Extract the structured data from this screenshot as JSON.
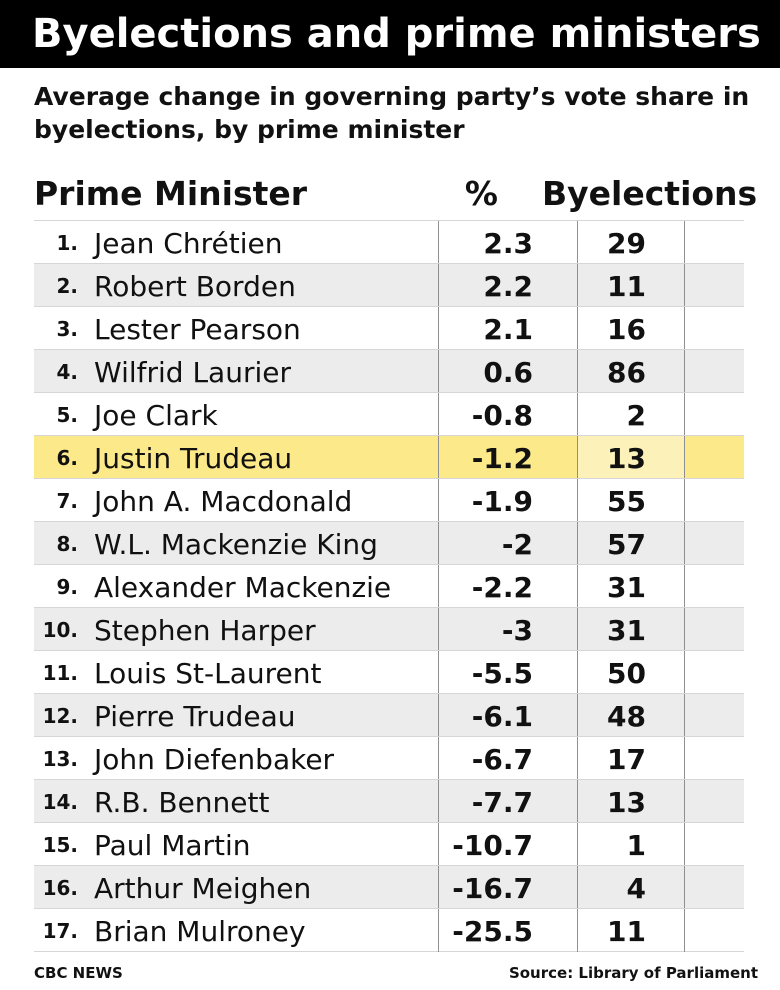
{
  "title": "Byelections and prime ministers",
  "subtitle": "Average change in governing party’s vote share in byelections, by prime minister",
  "columns": {
    "name": "Prime Minister",
    "pct": "%",
    "byelections": "Byelections"
  },
  "chart_data": {
    "type": "table",
    "highlight_row": 6,
    "highlight_color": "#fce98a",
    "rows": [
      {
        "rank": "1.",
        "name": "Jean Chrétien",
        "pct": "2.3",
        "byelections": "29"
      },
      {
        "rank": "2.",
        "name": "Robert Borden",
        "pct": "2.2",
        "byelections": "11"
      },
      {
        "rank": "3.",
        "name": "Lester Pearson",
        "pct": "2.1",
        "byelections": "16"
      },
      {
        "rank": "4.",
        "name": "Wilfrid Laurier",
        "pct": "0.6",
        "byelections": "86"
      },
      {
        "rank": "5.",
        "name": "Joe Clark",
        "pct": "-0.8",
        "byelections": "2"
      },
      {
        "rank": "6.",
        "name": "Justin Trudeau",
        "pct": "-1.2",
        "byelections": "13"
      },
      {
        "rank": "7.",
        "name": "John A. Macdonald",
        "pct": "-1.9",
        "byelections": "55"
      },
      {
        "rank": "8.",
        "name": "W.L. Mackenzie King",
        "pct": "-2",
        "byelections": "57"
      },
      {
        "rank": "9.",
        "name": "Alexander Mackenzie",
        "pct": "-2.2",
        "byelections": "31"
      },
      {
        "rank": "10.",
        "name": "Stephen Harper",
        "pct": "-3",
        "byelections": "31"
      },
      {
        "rank": "11.",
        "name": "Louis St-Laurent",
        "pct": "-5.5",
        "byelections": "50"
      },
      {
        "rank": "12.",
        "name": "Pierre Trudeau",
        "pct": "-6.1",
        "byelections": "48"
      },
      {
        "rank": "13.",
        "name": "John Diefenbaker",
        "pct": "-6.7",
        "byelections": "17"
      },
      {
        "rank": "14.",
        "name": "R.B. Bennett",
        "pct": "-7.7",
        "byelections": "13"
      },
      {
        "rank": "15.",
        "name": "Paul Martin",
        "pct": "-10.7",
        "byelections": "1"
      },
      {
        "rank": "16.",
        "name": "Arthur Meighen",
        "pct": "-16.7",
        "byelections": "4"
      },
      {
        "rank": "17.",
        "name": "Brian Mulroney",
        "pct": "-25.5",
        "byelections": "11"
      }
    ]
  },
  "footer": {
    "credit": "CBC NEWS",
    "source": "Source: Library of Parliament"
  }
}
